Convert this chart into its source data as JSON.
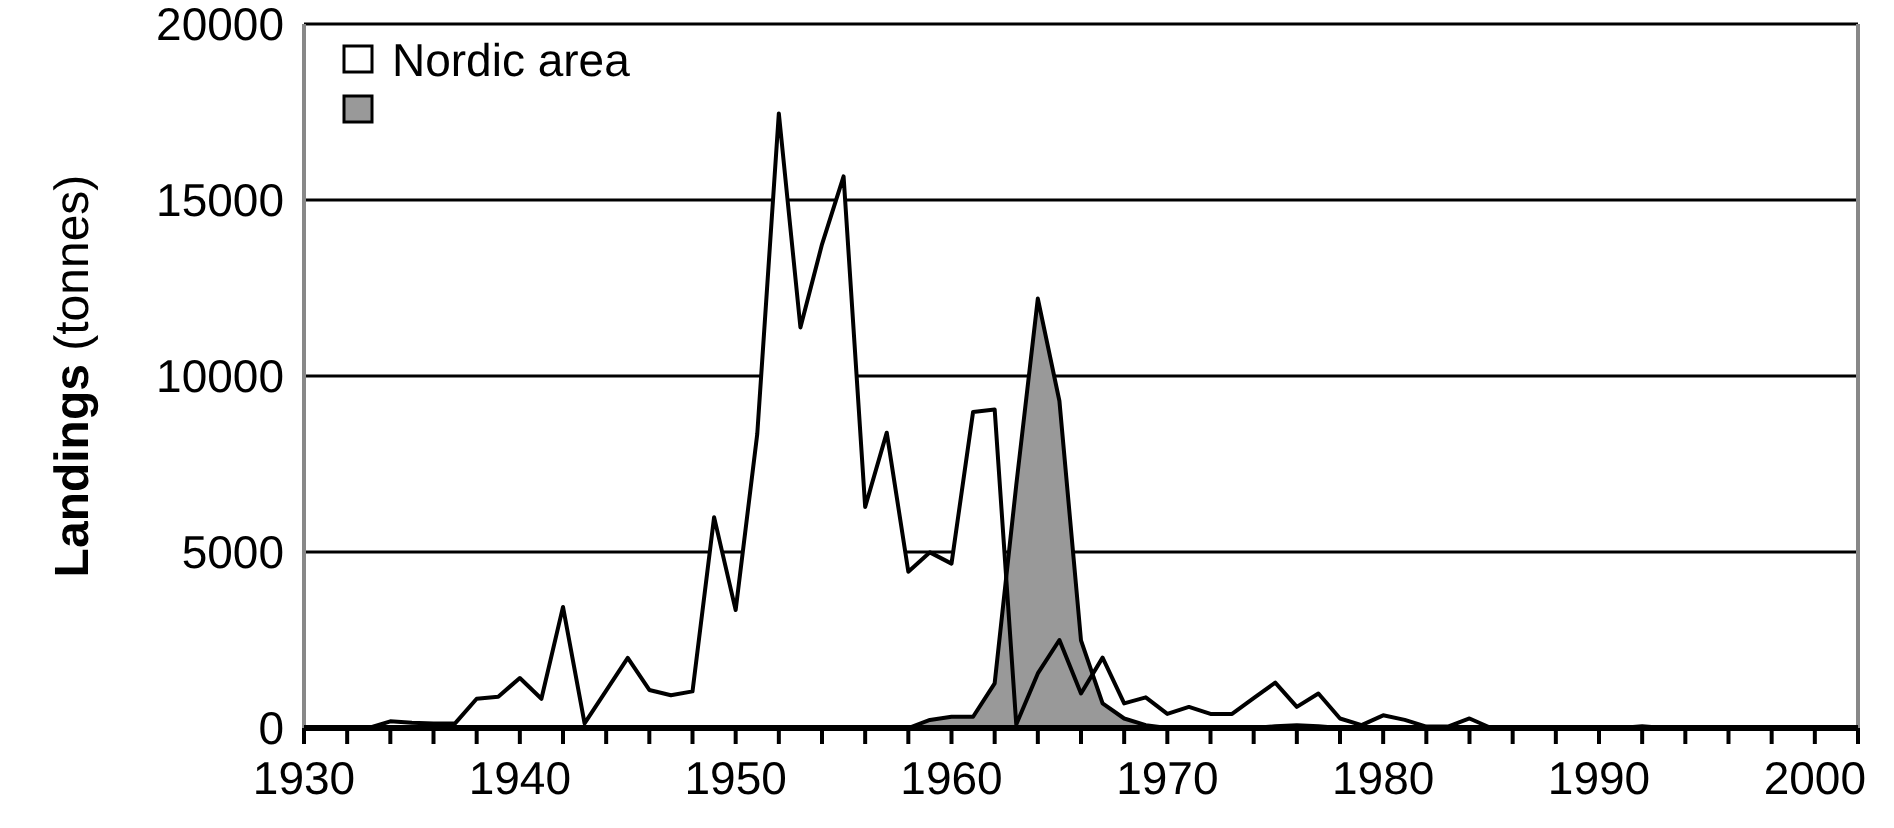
{
  "chart_data": {
    "type": "area",
    "ylabel": "Landings (tonnes)",
    "x": [
      1930,
      1931,
      1932,
      1933,
      1934,
      1935,
      1936,
      1937,
      1938,
      1939,
      1940,
      1941,
      1942,
      1943,
      1944,
      1945,
      1946,
      1947,
      1948,
      1949,
      1950,
      1951,
      1952,
      1953,
      1954,
      1955,
      1956,
      1957,
      1958,
      1959,
      1960,
      1961,
      1962,
      1963,
      1964,
      1965,
      1966,
      1967,
      1968,
      1969,
      1970,
      1971,
      1972,
      1973,
      1974,
      1975,
      1976,
      1977,
      1978,
      1979,
      1980,
      1981,
      1982,
      1983,
      1984,
      1985,
      1986,
      1987,
      1988,
      1989,
      1990,
      1991,
      1992,
      1993,
      1994,
      1995,
      1996,
      1997,
      1998,
      1999,
      2000,
      2001,
      2002
    ],
    "series": [
      {
        "name": "Nordic area",
        "color": "#ffffff",
        "values": [
          0,
          0,
          0,
          0,
          190,
          150,
          130,
          130,
          830,
          890,
          1420,
          830,
          3440,
          130,
          1060,
          1990,
          1080,
          930,
          1040,
          5990,
          3350,
          8350,
          17460,
          11380,
          13740,
          15670,
          6280,
          8390,
          4440,
          4990,
          4670,
          8980,
          9050,
          100,
          1550,
          2500,
          980,
          2000,
          700,
          870,
          400,
          600,
          400,
          400,
          850,
          1290,
          600,
          980,
          270,
          80,
          360,
          230,
          40,
          40,
          270,
          0,
          0,
          0,
          0,
          0,
          0,
          0,
          50,
          0,
          0,
          0,
          0,
          0,
          0,
          0,
          0,
          0,
          0
        ]
      },
      {
        "color": "#999999",
        "values": [
          0,
          0,
          0,
          0,
          0,
          0,
          0,
          0,
          0,
          0,
          0,
          0,
          0,
          0,
          0,
          0,
          0,
          0,
          0,
          0,
          0,
          0,
          0,
          0,
          0,
          0,
          0,
          0,
          0,
          230,
          320,
          320,
          1270,
          6900,
          12200,
          9290,
          2490,
          700,
          270,
          80,
          0,
          0,
          0,
          0,
          0,
          50,
          80,
          50,
          0,
          0,
          0,
          0,
          0,
          0,
          0,
          0,
          0,
          0,
          0,
          0,
          0,
          0,
          0,
          0,
          0,
          0,
          0,
          0,
          0,
          0,
          0,
          0,
          0
        ]
      }
    ],
    "xlim": [
      1930,
      2002
    ],
    "xticks": [
      1930,
      {
        "value": 1932,
        "label": null
      },
      {
        "value": 1934,
        "label": null
      },
      {
        "value": 1936,
        "label": null
      },
      {
        "value": 1938,
        "label": null
      },
      1940,
      {
        "value": 1942,
        "label": null
      },
      {
        "value": 1944,
        "label": null
      },
      {
        "value": 1946,
        "label": null
      },
      {
        "value": 1948,
        "label": null
      },
      1950,
      {
        "value": 1952,
        "label": null
      },
      {
        "value": 1954,
        "label": null
      },
      {
        "value": 1956,
        "label": null
      },
      {
        "value": 1958,
        "label": null
      },
      1960,
      {
        "value": 1962,
        "label": null
      },
      {
        "value": 1964,
        "label": null
      },
      {
        "value": 1966,
        "label": null
      },
      {
        "value": 1968,
        "label": null
      },
      1970,
      {
        "value": 1972,
        "label": null
      },
      {
        "value": 1974,
        "label": null
      },
      {
        "value": 1976,
        "label": null
      },
      {
        "value": 1978,
        "label": null
      },
      1980,
      {
        "value": 1982,
        "label": null
      },
      {
        "value": 1984,
        "label": null
      },
      {
        "value": 1986,
        "label": null
      },
      {
        "value": 1988,
        "label": null
      },
      1990,
      {
        "value": 1992,
        "label": null
      },
      {
        "value": 1994,
        "label": null
      },
      {
        "value": 1996,
        "label": null
      },
      {
        "value": 1998,
        "label": null
      },
      2000,
      {
        "value": 2002,
        "label": null
      }
    ],
    "ylim": [
      0,
      20000
    ],
    "yticks": [
      0,
      5000,
      10000,
      15000,
      20000
    ],
    "grid": "y",
    "legend": "top left"
  }
}
